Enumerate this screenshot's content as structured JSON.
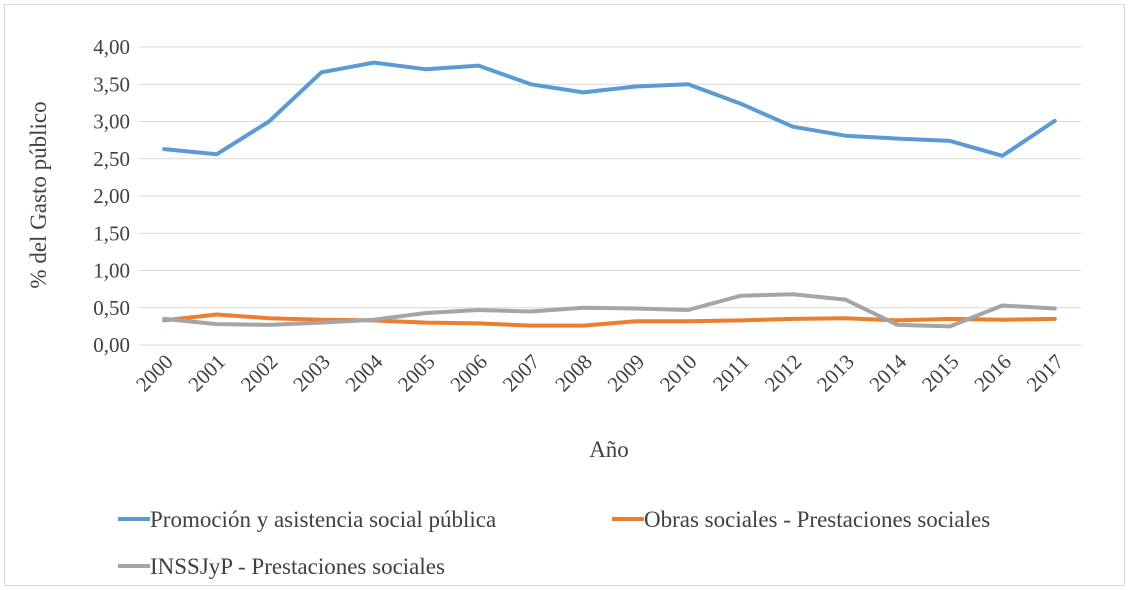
{
  "chart_data": {
    "type": "line",
    "title": "",
    "xlabel": "Año",
    "ylabel": "% del Gasto público",
    "ylim": [
      0,
      4
    ],
    "y_ticks": [
      "0,00",
      "0,50",
      "1,00",
      "1,50",
      "2,00",
      "2,50",
      "3,00",
      "3,50",
      "4,00"
    ],
    "categories": [
      "2000",
      "2001",
      "2002",
      "2003",
      "2004",
      "2005",
      "2006",
      "2007",
      "2008",
      "2009",
      "2010",
      "2011",
      "2012",
      "2013",
      "2014",
      "2015",
      "2016",
      "2017"
    ],
    "grid": "horizontal",
    "legend_position": "bottom",
    "series": [
      {
        "name": "Promoción y asistencia social pública",
        "color": "#5b9bd5",
        "values": [
          2.63,
          2.56,
          3.0,
          3.66,
          3.79,
          3.7,
          3.75,
          3.5,
          3.39,
          3.47,
          3.5,
          3.24,
          2.93,
          2.81,
          2.77,
          2.74,
          2.54,
          3.01
        ]
      },
      {
        "name": "Obras sociales - Prestaciones sociales",
        "color": "#ed7d31",
        "values": [
          0.33,
          0.41,
          0.36,
          0.34,
          0.33,
          0.3,
          0.29,
          0.26,
          0.26,
          0.32,
          0.32,
          0.33,
          0.35,
          0.36,
          0.33,
          0.35,
          0.34,
          0.35
        ]
      },
      {
        "name": "INSSJyP - Prestaciones sociales",
        "color": "#a5a5a5",
        "values": [
          0.35,
          0.28,
          0.27,
          0.3,
          0.34,
          0.43,
          0.47,
          0.45,
          0.5,
          0.49,
          0.47,
          0.66,
          0.68,
          0.61,
          0.27,
          0.25,
          0.53,
          0.49
        ]
      }
    ]
  }
}
